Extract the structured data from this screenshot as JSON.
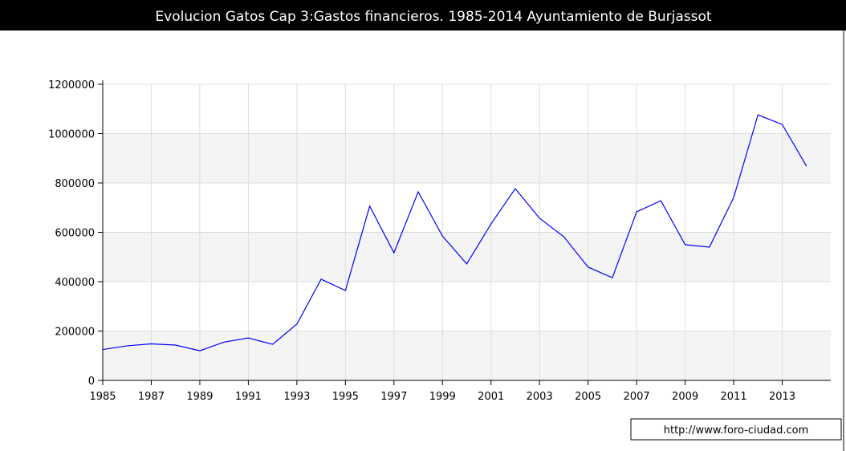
{
  "chart_data": {
    "type": "line",
    "title": "Evolucion Gatos Cap 3:Gastos financieros. 1985-2014 Ayuntamiento de Burjassot",
    "x": [
      1985,
      1986,
      1987,
      1988,
      1989,
      1990,
      1991,
      1992,
      1993,
      1994,
      1995,
      1996,
      1997,
      1998,
      1999,
      2000,
      2001,
      2002,
      2003,
      2004,
      2005,
      2006,
      2007,
      2008,
      2009,
      2010,
      2011,
      2012,
      2013,
      2014
    ],
    "series": [
      {
        "name": "Gastos financieros",
        "color": "#0000ff",
        "values": [
          125000,
          140000,
          148000,
          143000,
          120000,
          155000,
          172000,
          146000,
          228000,
          410000,
          364000,
          706000,
          517000,
          764000,
          585000,
          472000,
          634000,
          777000,
          657000,
          582000,
          459000,
          416000,
          683000,
          728000,
          550000,
          540000,
          741000,
          1076000,
          1037000,
          868000
        ]
      }
    ],
    "xlim": [
      1985,
      2015
    ],
    "xticks": [
      1985,
      1987,
      1989,
      1991,
      1993,
      1995,
      1997,
      1999,
      2001,
      2003,
      2005,
      2007,
      2009,
      2011,
      2013
    ],
    "ylim": [
      0,
      1200000
    ],
    "yticks": [
      0,
      200000,
      400000,
      600000,
      800000,
      1000000,
      1200000
    ],
    "grid": true,
    "source": "http://www.foro-ciudad.com"
  }
}
